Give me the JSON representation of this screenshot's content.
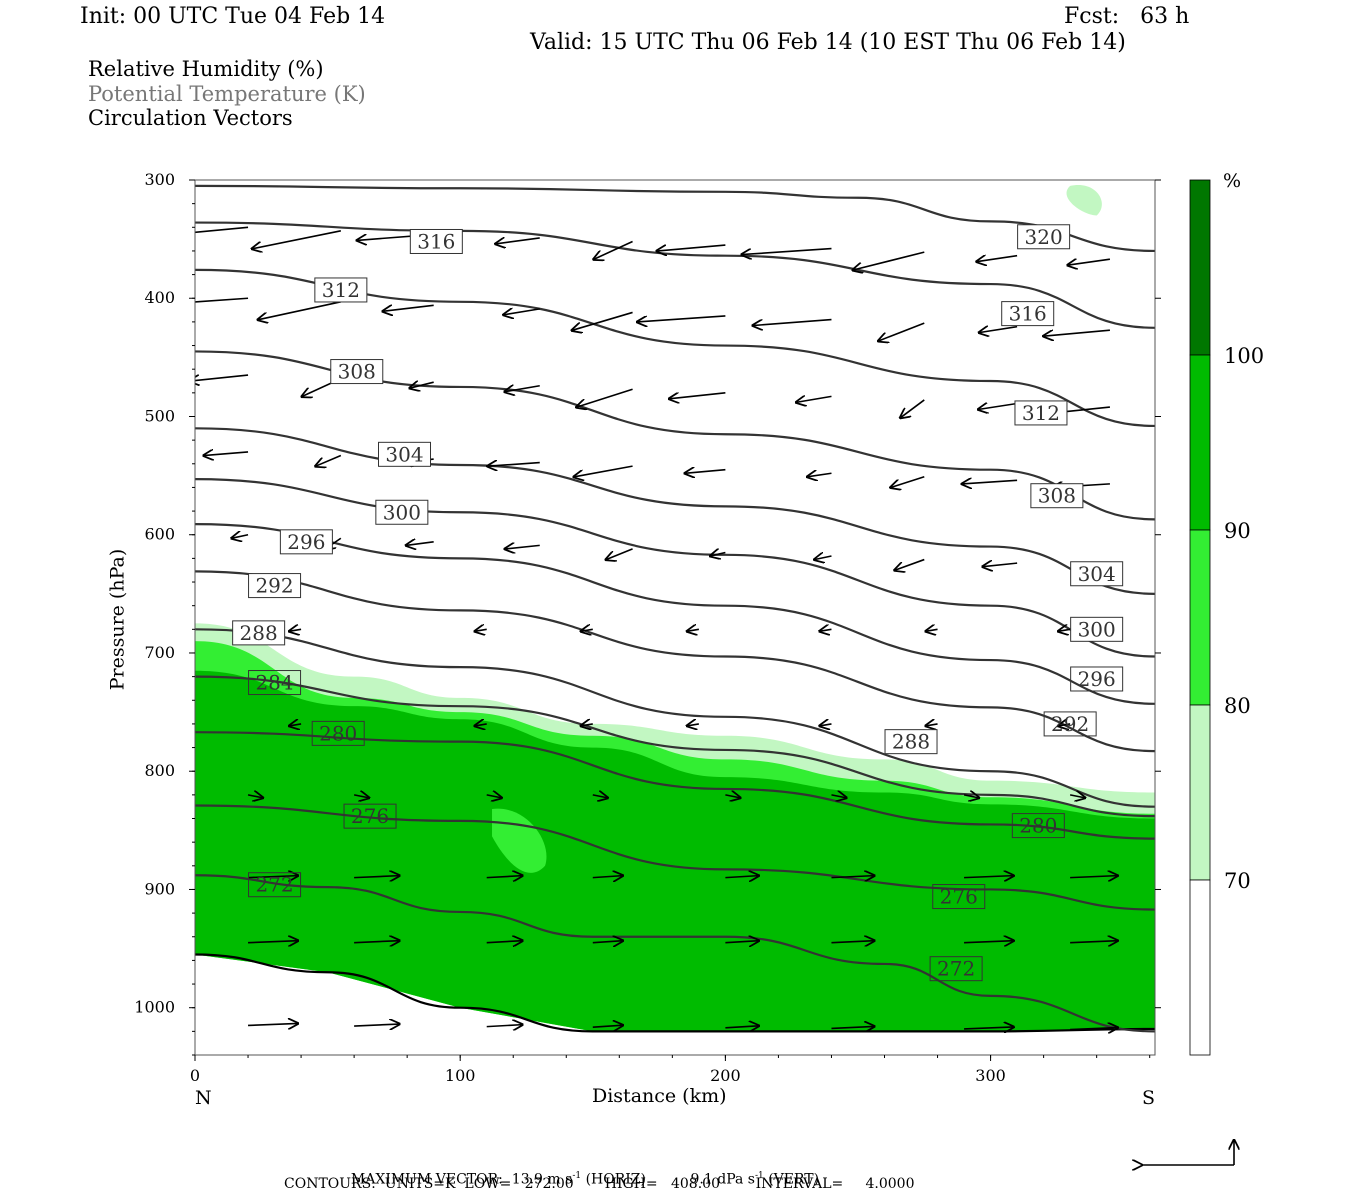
{
  "header": {
    "init": "Init: 00 UTC Tue 04 Feb 14",
    "fcst": "Fcst:   63 h",
    "valid": "Valid: 15 UTC Thu 06 Feb 14 (10 EST Thu 06 Feb 14)"
  },
  "legend": {
    "rh": "Relative Humidity (%)",
    "theta": "Potential Temperature (K)",
    "vectors": "Circulation Vectors"
  },
  "footer": {
    "max_vector_label": "MAXIMUM VECTOR:",
    "max_horiz_value": "13.9 m s",
    "max_horiz_unit": "(HORIZ)",
    "max_vert_value": "9.1 dPa s",
    "max_vert_unit": "(VERT)",
    "exponent": "-1",
    "contours": "CONTOURS:  UNITS=K  LOW=   272.00       HIGH=   408.00        INTERVAL=     4.0000"
  },
  "colorbar": {
    "unit": "%",
    "ticks": [
      "70",
      "80",
      "90",
      "100"
    ],
    "colors": [
      "#ffffff",
      "#c2f7c2",
      "#33ee33",
      "#00bb00",
      "#007700"
    ]
  },
  "chart_data": {
    "type": "cross-section",
    "xlabel": "Distance (km)",
    "ylabel": "Pressure (hPa)",
    "x_ends": [
      "N",
      "S"
    ],
    "xlim": [
      0,
      362
    ],
    "ylim": [
      1040,
      300
    ],
    "xticks": [
      0,
      100,
      200,
      300
    ],
    "yticks": [
      300,
      400,
      500,
      600,
      700,
      800,
      900,
      1000
    ],
    "theta_contours": [
      {
        "value": 320,
        "x": [
          0,
          100,
          200,
          250,
          300,
          362
        ],
        "p": [
          305,
          307,
          310,
          315,
          335,
          360
        ],
        "label_at": [
          320,
          348
        ]
      },
      {
        "value": 316,
        "x": [
          0,
          100,
          200,
          300,
          362
        ],
        "p": [
          336,
          343,
          364,
          388,
          425
        ],
        "label_at": [
          [
            91,
            352
          ],
          [
            314,
            413
          ]
        ]
      },
      {
        "value": 312,
        "x": [
          0,
          100,
          200,
          300,
          362
        ],
        "p": [
          376,
          403,
          440,
          470,
          508
        ],
        "label_at": [
          [
            55,
            393
          ],
          [
            319,
            497
          ]
        ]
      },
      {
        "value": 308,
        "x": [
          0,
          100,
          200,
          300,
          362
        ],
        "p": [
          445,
          475,
          515,
          545,
          587
        ],
        "label_at": [
          [
            61,
            462
          ],
          [
            325,
            567
          ]
        ]
      },
      {
        "value": 304,
        "x": [
          0,
          100,
          200,
          300,
          362
        ],
        "p": [
          510,
          541,
          576,
          610,
          650
        ],
        "label_at": [
          [
            79,
            532
          ],
          [
            340,
            633
          ]
        ]
      },
      {
        "value": 300,
        "x": [
          0,
          100,
          200,
          300,
          362
        ],
        "p": [
          553,
          581,
          617,
          660,
          703
        ],
        "label_at": [
          [
            78,
            581
          ],
          [
            340,
            680
          ]
        ]
      },
      {
        "value": 296,
        "x": [
          0,
          100,
          200,
          300,
          362
        ],
        "p": [
          591,
          620,
          660,
          706,
          743
        ],
        "label_at": [
          [
            42,
            606
          ],
          [
            340,
            722
          ]
        ]
      },
      {
        "value": 292,
        "x": [
          0,
          100,
          200,
          300,
          362
        ],
        "p": [
          631,
          664,
          703,
          746,
          783
        ],
        "label_at": [
          [
            30,
            643
          ],
          [
            330,
            760
          ]
        ]
      },
      {
        "value": 288,
        "x": [
          0,
          100,
          200,
          300,
          362
        ],
        "p": [
          680,
          712,
          754,
          800,
          830
        ],
        "label_at": [
          [
            24,
            683
          ],
          [
            270,
            775
          ]
        ]
      },
      {
        "value": 284,
        "x": [
          0,
          100,
          200,
          300,
          362
        ],
        "p": [
          720,
          745,
          782,
          820,
          838
        ],
        "label_at": [
          30,
          725
        ]
      },
      {
        "value": 280,
        "x": [
          0,
          100,
          200,
          300,
          362
        ],
        "p": [
          767,
          775,
          815,
          845,
          857
        ],
        "label_at": [
          [
            54,
            768
          ],
          [
            318,
            846
          ]
        ]
      },
      {
        "value": 276,
        "x": [
          0,
          100,
          200,
          300,
          362
        ],
        "p": [
          829,
          842,
          883,
          900,
          917
        ],
        "label_at": [
          [
            66,
            838
          ],
          [
            288,
            906
          ]
        ]
      },
      {
        "value": 272,
        "x": [
          0,
          50,
          100,
          150,
          200,
          260,
          300,
          362
        ],
        "p": [
          888,
          898,
          919,
          940,
          940,
          963,
          990,
          1020
        ],
        "label_at": [
          [
            30,
            896
          ],
          [
            287,
            967
          ]
        ]
      }
    ],
    "terrain": {
      "x": [
        0,
        50,
        100,
        150,
        200,
        300,
        362
      ],
      "p": [
        955,
        970,
        1000,
        1020,
        1020,
        1020,
        1018
      ]
    },
    "rh_shading": [
      {
        "level": ">=70",
        "x": [
          0,
          60,
          100,
          150,
          200,
          260,
          300,
          362
        ],
        "p_top": [
          675,
          720,
          738,
          760,
          770,
          790,
          808,
          818
        ]
      },
      {
        "level": ">=80",
        "x": [
          0,
          60,
          100,
          150,
          200,
          260,
          300,
          362
        ],
        "p_top": [
          690,
          738,
          750,
          770,
          790,
          808,
          822,
          836
        ]
      },
      {
        "level": ">=90",
        "x": [
          0,
          60,
          100,
          150,
          200,
          260,
          300,
          362
        ],
        "p_top": [
          715,
          745,
          756,
          780,
          805,
          818,
          828,
          840
        ]
      }
    ],
    "wind_vectors_note": "circulation vectors: westward (leftward) flow aloft, weak near 650-750 hPa, eastward (rightward) flow below ~850 hPa"
  }
}
